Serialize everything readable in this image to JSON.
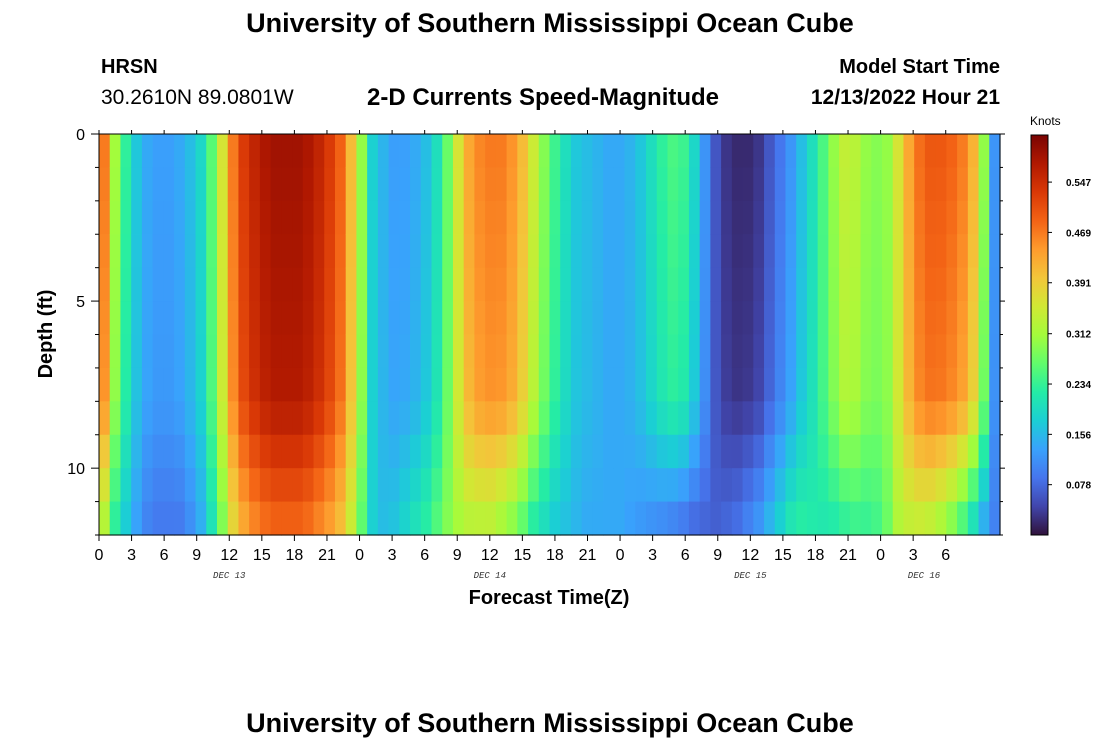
{
  "header": {
    "title": "University of Southern Mississippi Ocean Cube",
    "station": "HRSN",
    "coords": "30.2610N  89.0801W",
    "subtitle": "2-D Currents Speed-Magnitude",
    "start_label": "Model Start Time",
    "start_value": "12/13/2022 Hour 21"
  },
  "footer": {
    "title": "University of Southern Mississippi Ocean Cube"
  },
  "chart_data": {
    "type": "heatmap",
    "title": "2-D Currents Speed-Magnitude",
    "xlabel": "Forecast Time(Z)",
    "ylabel": "Depth (ft)",
    "units": "Knots",
    "x_hours": [
      0,
      83
    ],
    "y_depth_ft": [
      0,
      12
    ],
    "y_ticks": [
      0,
      5,
      10
    ],
    "x_tick_labels": [
      "0",
      "3",
      "6",
      "9",
      "12",
      "15",
      "18",
      "21",
      "0",
      "3",
      "6",
      "9",
      "12",
      "15",
      "18",
      "21",
      "0",
      "3",
      "6",
      "9",
      "12",
      "15",
      "18",
      "21",
      "0",
      "3",
      "6"
    ],
    "day_labels": [
      {
        "text": "DEC 13",
        "hour": 12
      },
      {
        "text": "DEC 14",
        "hour": 36
      },
      {
        "text": "DEC 15",
        "hour": 60
      },
      {
        "text": "DEC 16",
        "hour": 76
      }
    ],
    "colorbar": {
      "min": 0.0,
      "max": 0.62,
      "tick_labels": [
        "0.078",
        "0.156",
        "0.234",
        "0.312",
        "0.391",
        "0.469",
        "0.547"
      ],
      "colors": [
        "#30123b",
        "#4145ab",
        "#4675ed",
        "#39a2fc",
        "#1bcfd4",
        "#24eca6",
        "#61fc6c",
        "#a4fc3b",
        "#d1e834",
        "#f3c63a",
        "#fe9b2d",
        "#f36315",
        "#d93806",
        "#b11901",
        "#7a0403"
      ]
    },
    "profiles": {
      "hours": [
        0,
        1,
        2,
        3,
        4,
        5,
        6,
        7,
        8,
        9,
        10,
        11,
        12,
        13,
        14,
        15,
        16,
        17,
        18,
        19,
        20,
        21,
        22,
        23,
        24,
        25,
        26,
        27,
        28,
        29,
        30,
        31,
        32,
        33,
        34,
        35,
        36,
        37,
        38,
        39,
        40,
        41,
        42,
        43,
        44,
        45,
        46,
        47,
        48,
        49,
        50,
        51,
        52,
        53,
        54,
        55,
        56,
        57,
        58,
        59,
        60,
        61,
        62,
        63,
        64,
        65,
        66,
        67,
        68,
        69,
        70,
        71,
        72,
        73,
        74,
        75,
        76,
        77,
        78,
        79,
        80,
        81,
        82,
        83
      ],
      "surface_knots": [
        0.47,
        0.31,
        0.23,
        0.17,
        0.14,
        0.13,
        0.13,
        0.14,
        0.16,
        0.19,
        0.26,
        0.36,
        0.47,
        0.53,
        0.56,
        0.58,
        0.59,
        0.59,
        0.59,
        0.58,
        0.56,
        0.53,
        0.49,
        0.41,
        0.3,
        0.18,
        0.15,
        0.13,
        0.13,
        0.14,
        0.16,
        0.2,
        0.27,
        0.36,
        0.43,
        0.46,
        0.47,
        0.47,
        0.45,
        0.41,
        0.35,
        0.29,
        0.24,
        0.2,
        0.17,
        0.16,
        0.15,
        0.14,
        0.14,
        0.15,
        0.17,
        0.2,
        0.23,
        0.25,
        0.24,
        0.19,
        0.12,
        0.06,
        0.03,
        0.02,
        0.02,
        0.03,
        0.06,
        0.09,
        0.12,
        0.16,
        0.2,
        0.25,
        0.3,
        0.34,
        0.33,
        0.3,
        0.29,
        0.3,
        0.36,
        0.43,
        0.48,
        0.5,
        0.5,
        0.49,
        0.47,
        0.42,
        0.3,
        0.12
      ],
      "bottom_knots": [
        0.31,
        0.22,
        0.17,
        0.13,
        0.1,
        0.09,
        0.09,
        0.09,
        0.11,
        0.14,
        0.2,
        0.28,
        0.37,
        0.42,
        0.45,
        0.47,
        0.48,
        0.48,
        0.48,
        0.47,
        0.45,
        0.43,
        0.4,
        0.34,
        0.26,
        0.18,
        0.16,
        0.17,
        0.19,
        0.21,
        0.23,
        0.26,
        0.29,
        0.31,
        0.32,
        0.32,
        0.32,
        0.3,
        0.28,
        0.25,
        0.21,
        0.19,
        0.17,
        0.16,
        0.15,
        0.14,
        0.14,
        0.14,
        0.14,
        0.13,
        0.12,
        0.11,
        0.1,
        0.09,
        0.08,
        0.07,
        0.07,
        0.07,
        0.08,
        0.09,
        0.11,
        0.13,
        0.16,
        0.19,
        0.22,
        0.23,
        0.22,
        0.21,
        0.21,
        0.22,
        0.23,
        0.23,
        0.24,
        0.27,
        0.32,
        0.33,
        0.33,
        0.32,
        0.3,
        0.27,
        0.23,
        0.18,
        0.13,
        0.1
      ],
      "bottom_layer_ft": [
        8,
        12
      ]
    }
  }
}
